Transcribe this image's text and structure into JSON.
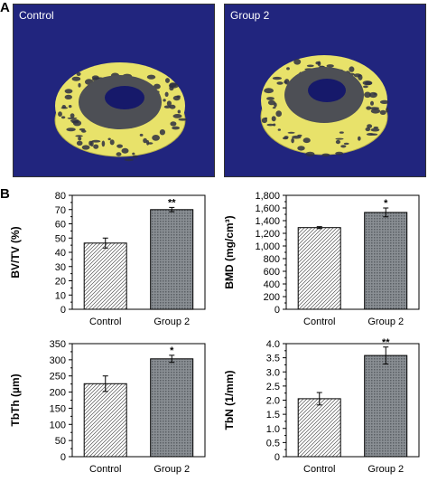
{
  "panels": {
    "a_label": "A",
    "b_label": "B"
  },
  "images": [
    {
      "label": "Control"
    },
    {
      "label": "Group 2"
    }
  ],
  "colors": {
    "image_bg": "#21257e",
    "bone": "#e8e26a",
    "bone_dark": "#2e3042",
    "inner_shell": "#4d4f55",
    "hole": "#16196a",
    "control_bar": "#ffffff",
    "group2_bar": "#8a8f94"
  },
  "chart_data": [
    {
      "type": "bar",
      "categories": [
        "Control",
        "Group 2"
      ],
      "values": [
        46.5,
        70
      ],
      "errors": [
        3.5,
        1.5
      ],
      "annotations": [
        "",
        "**"
      ],
      "title": "",
      "xlabel": "",
      "ylabel": "BV/TV (%)",
      "ylim": [
        0,
        80
      ],
      "yticks": [
        "0",
        "10",
        "20",
        "30",
        "40",
        "50",
        "60",
        "70",
        "80"
      ],
      "grid": false
    },
    {
      "type": "bar",
      "categories": [
        "Control",
        "Group 2"
      ],
      "values": [
        1290,
        1530
      ],
      "errors": [
        15,
        70
      ],
      "annotations": [
        "",
        "*"
      ],
      "title": "",
      "xlabel": "",
      "ylabel": "BMD (mg/cm³)",
      "ylim": [
        0,
        1800
      ],
      "yticks": [
        "0",
        "200",
        "400",
        "600",
        "800",
        "1,000",
        "1,200",
        "1,400",
        "1,600",
        "1,800"
      ],
      "grid": false
    },
    {
      "type": "bar",
      "categories": [
        "Control",
        "Group 2"
      ],
      "values": [
        226,
        303
      ],
      "errors": [
        24,
        11
      ],
      "annotations": [
        "",
        "*"
      ],
      "title": "",
      "xlabel": "",
      "ylabel": "TbTh (µm)",
      "ylim": [
        0,
        350
      ],
      "yticks": [
        "0",
        "50",
        "100",
        "150",
        "200",
        "250",
        "300",
        "350"
      ],
      "grid": false
    },
    {
      "type": "bar",
      "categories": [
        "Control",
        "Group 2"
      ],
      "values": [
        2.05,
        3.58
      ],
      "errors": [
        0.22,
        0.3
      ],
      "annotations": [
        "",
        "**"
      ],
      "title": "",
      "xlabel": "",
      "ylabel": "TbN (1/mm)",
      "ylim": [
        0,
        4
      ],
      "yticks": [
        "0",
        "0.5",
        "1.0",
        "1.5",
        "2.0",
        "2.5",
        "3.0",
        "3.5",
        "4.0"
      ],
      "grid": false
    }
  ]
}
